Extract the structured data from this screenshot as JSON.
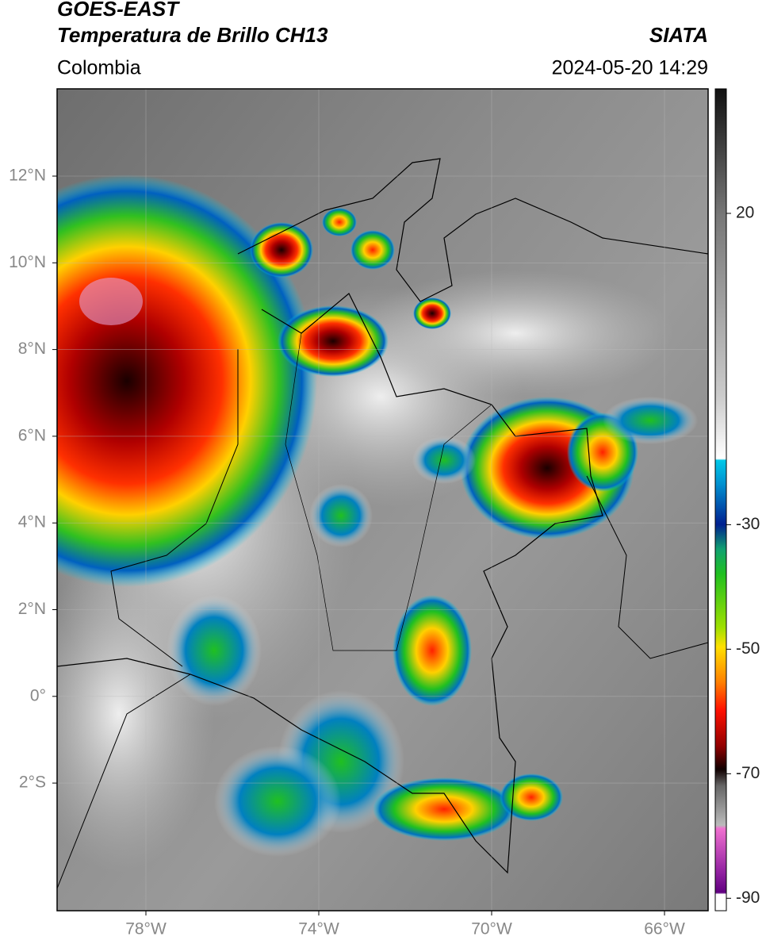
{
  "header": {
    "satellite": "GOES-EAST",
    "product": "Temperatura de Brillo CH13",
    "source": "SIATA",
    "region": "Colombia",
    "timestamp": "2024-05-20 14:29"
  },
  "map": {
    "lat_labels": [
      "12°N",
      "10°N",
      "8°N",
      "6°N",
      "4°N",
      "2°N",
      "0°",
      "2°S"
    ],
    "lon_labels": [
      "78°W",
      "74°W",
      "70°W",
      "66°W"
    ]
  },
  "colorbar": {
    "lim": [
      -92,
      40
    ],
    "ticks": [
      20,
      -30,
      -50,
      -70,
      -90
    ]
  }
}
